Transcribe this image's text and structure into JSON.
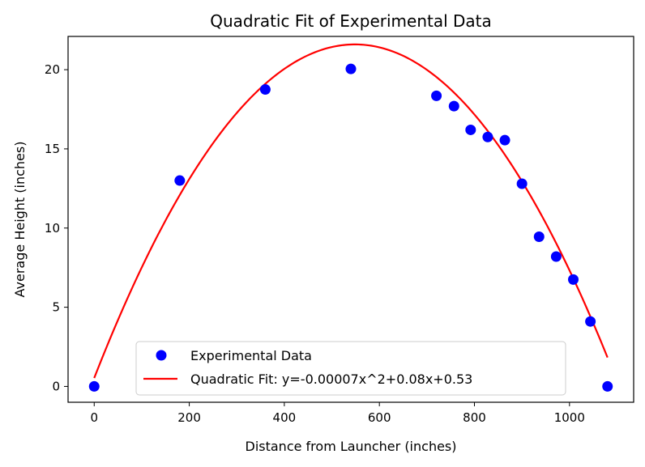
{
  "chart_data": {
    "type": "scatter",
    "title": "Quadratic Fit of Experimental Data",
    "xlabel": "Distance from Launcher (inches)",
    "ylabel": "Average Height (inches)",
    "xlim": [
      -55,
      1135
    ],
    "ylim": [
      -1.0,
      22.1
    ],
    "xticks": [
      0,
      200,
      400,
      600,
      800,
      1000
    ],
    "yticks": [
      0,
      5,
      10,
      15,
      20
    ],
    "grid": false,
    "legend_position": "lower-center",
    "series": [
      {
        "name": "Experimental Data",
        "kind": "scatter",
        "color": "#0000ff",
        "x": [
          0,
          180,
          360,
          540,
          720,
          757,
          792,
          828,
          864,
          900,
          936,
          972,
          1008,
          1044,
          1080
        ],
        "y": [
          0.0,
          13.0,
          18.75,
          20.05,
          18.35,
          17.7,
          16.2,
          15.75,
          15.55,
          12.8,
          9.45,
          8.2,
          6.75,
          4.1,
          0.0
        ]
      },
      {
        "name": "Quadratic Fit: y=-0.00007x^2+0.08x+0.53",
        "kind": "line",
        "color": "#ff0000",
        "equation": {
          "a": -7e-05,
          "b": 0.0768,
          "c": 0.53
        },
        "x_range": [
          0,
          1080
        ]
      }
    ]
  }
}
